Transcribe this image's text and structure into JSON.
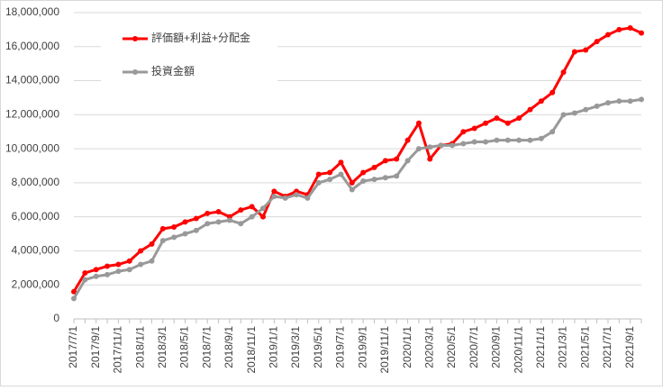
{
  "chart_data": {
    "type": "line",
    "categories": [
      "2017/7/1",
      null,
      "2017/9/1",
      null,
      "2017/11/1",
      null,
      "2018/1/1",
      null,
      "2018/3/1",
      null,
      "2018/5/1",
      null,
      "2018/7/1",
      null,
      "2018/9/1",
      null,
      "2018/11/1",
      null,
      "2019/1/1",
      null,
      "2019/3/1",
      null,
      "2019/5/1",
      null,
      "2019/7/1",
      null,
      "2019/9/1",
      null,
      "2019/11/1",
      null,
      "2020/1/1",
      null,
      "2020/3/1",
      null,
      "2020/5/1",
      null,
      "2020/7/1",
      null,
      "2020/9/1",
      null,
      "2020/11/1",
      null,
      "2021/1/1",
      null,
      "2021/3/1",
      null,
      "2021/5/1",
      null,
      "2021/7/1",
      null,
      "2021/9/1",
      null
    ],
    "series": [
      {
        "name": "評価額+利益+分配金",
        "color": "#ff0000",
        "values": [
          1600000,
          2700000,
          2900000,
          3100000,
          3200000,
          3400000,
          4000000,
          4400000,
          5300000,
          5400000,
          5700000,
          5900000,
          6200000,
          6300000,
          6000000,
          6400000,
          6600000,
          6000000,
          7500000,
          7200000,
          7500000,
          7300000,
          8500000,
          8600000,
          9200000,
          8000000,
          8600000,
          8900000,
          9300000,
          9400000,
          10500000,
          11500000,
          9400000,
          10200000,
          10300000,
          11000000,
          11200000,
          11500000,
          11800000,
          11500000,
          11800000,
          12300000,
          12800000,
          13300000,
          14500000,
          15700000,
          15800000,
          16300000,
          16700000,
          17000000,
          17100000,
          16800000
        ]
      },
      {
        "name": "投資金額",
        "color": "#999999",
        "values": [
          1200000,
          2300000,
          2500000,
          2600000,
          2800000,
          2900000,
          3200000,
          3400000,
          4600000,
          4800000,
          5000000,
          5200000,
          5600000,
          5700000,
          5800000,
          5600000,
          6000000,
          6500000,
          7200000,
          7100000,
          7300000,
          7100000,
          8000000,
          8200000,
          8500000,
          7600000,
          8100000,
          8200000,
          8300000,
          8400000,
          9300000,
          10000000,
          10100000,
          10200000,
          10200000,
          10300000,
          10400000,
          10400000,
          10500000,
          10500000,
          10500000,
          10500000,
          10600000,
          11000000,
          12000000,
          12100000,
          12300000,
          12500000,
          12700000,
          12800000,
          12800000,
          12900000
        ]
      }
    ],
    "ylim": [
      0,
      18000000
    ],
    "yticks": [
      0,
      {
        "value": 2000000,
        "label": "2,000,000"
      },
      {
        "value": 4000000,
        "label": "4,000,000"
      },
      {
        "value": 6000000,
        "label": "6,000,000"
      },
      {
        "value": 8000000,
        "label": "8,000,000"
      },
      {
        "value": 10000000,
        "label": "10,000,000"
      },
      {
        "value": 12000000,
        "label": "12,000,000"
      },
      {
        "value": 14000000,
        "label": "14,000,000"
      },
      {
        "value": 16000000,
        "label": "16,000,000"
      },
      {
        "value": 18000000,
        "label": "18,000,000"
      }
    ],
    "grid": true,
    "legend": "top-left"
  }
}
